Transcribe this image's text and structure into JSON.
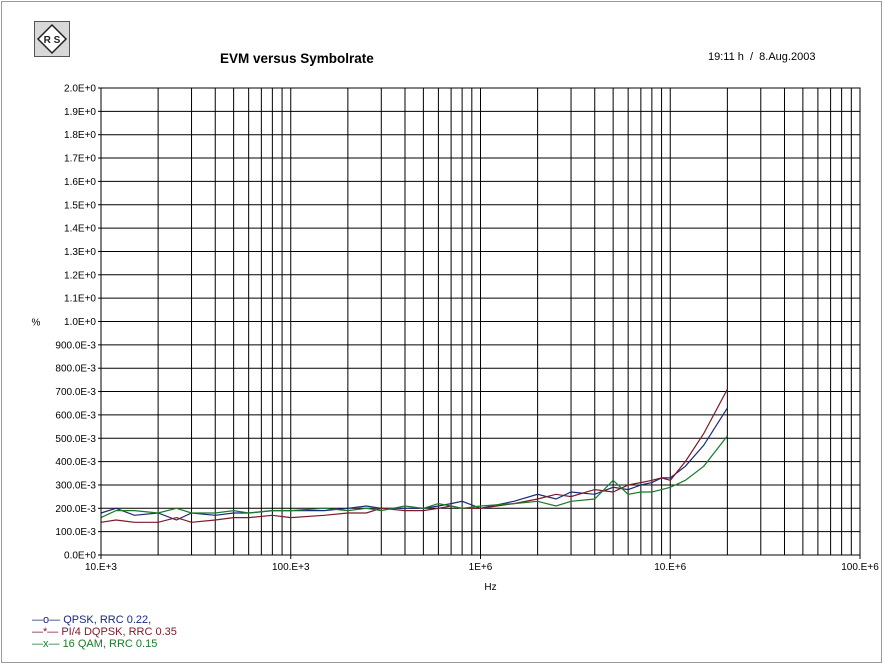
{
  "header": {
    "logo_text": "R S",
    "title": "EVM versus Symbolrate",
    "timestamp": "19:11 h  /  8.Aug.2003"
  },
  "chart_data": {
    "type": "line",
    "title": "EVM versus Symbolrate",
    "xlabel": "Hz",
    "ylabel": "%",
    "xscale": "log",
    "xlim": [
      10000,
      100000000
    ],
    "ylim": [
      0,
      2
    ],
    "grid": true,
    "legend_position": "bottom-left",
    "x_tick_labels": [
      "10.E+3",
      "100.E+3",
      "1E+6",
      "10.E+6",
      "100.E+6"
    ],
    "x_tick_values": [
      10000,
      100000,
      1000000,
      10000000,
      100000000
    ],
    "y_tick_labels": [
      "0.0E+0",
      "100.0E-3",
      "200.0E-3",
      "300.0E-3",
      "400.0E-3",
      "500.0E-3",
      "600.0E-3",
      "700.0E-3",
      "800.0E-3",
      "900.0E-3",
      "1.0E+0",
      "1.1E+0",
      "1.2E+0",
      "1.3E+0",
      "1.4E+0",
      "1.5E+0",
      "1.6E+0",
      "1.7E+0",
      "1.8E+0",
      "1.9E+0",
      "2.0E+0"
    ],
    "y_tick_values": [
      0,
      0.1,
      0.2,
      0.3,
      0.4,
      0.5,
      0.6,
      0.7,
      0.8,
      0.9,
      1.0,
      1.1,
      1.2,
      1.3,
      1.4,
      1.5,
      1.6,
      1.7,
      1.8,
      1.9,
      2.0
    ],
    "series": [
      {
        "name": "QPSK, RRC 0.22,",
        "legend_marker": "—o—",
        "color": "#1a2a7a",
        "x": [
          10000,
          12000,
          15000,
          20000,
          25000,
          30000,
          40000,
          50000,
          60000,
          80000,
          100000,
          150000,
          200000,
          250000,
          300000,
          400000,
          500000,
          600000,
          700000,
          800000,
          1000000,
          1500000,
          2000000,
          2500000,
          3000000,
          4000000,
          5000000,
          6000000,
          7000000,
          8000000,
          9000000,
          10000000,
          12000000,
          15000000,
          20000000
        ],
        "y": [
          0.18,
          0.2,
          0.17,
          0.18,
          0.15,
          0.18,
          0.17,
          0.18,
          0.18,
          0.19,
          0.19,
          0.19,
          0.2,
          0.21,
          0.2,
          0.2,
          0.2,
          0.21,
          0.22,
          0.23,
          0.2,
          0.23,
          0.26,
          0.24,
          0.27,
          0.26,
          0.29,
          0.28,
          0.3,
          0.31,
          0.33,
          0.33,
          0.38,
          0.47,
          0.63
        ]
      },
      {
        "name": "PI/4 DQPSK, RRC 0.35",
        "legend_marker": "—*—",
        "color": "#7a1a2a",
        "x": [
          10000,
          12000,
          15000,
          20000,
          25000,
          30000,
          40000,
          50000,
          60000,
          80000,
          100000,
          150000,
          200000,
          250000,
          300000,
          400000,
          500000,
          600000,
          700000,
          800000,
          1000000,
          1500000,
          2000000,
          2500000,
          3000000,
          4000000,
          5000000,
          6000000,
          7000000,
          8000000,
          9000000,
          10000000,
          12000000,
          15000000,
          20000000
        ],
        "y": [
          0.14,
          0.15,
          0.14,
          0.14,
          0.16,
          0.14,
          0.15,
          0.16,
          0.16,
          0.17,
          0.16,
          0.17,
          0.18,
          0.18,
          0.2,
          0.19,
          0.19,
          0.2,
          0.21,
          0.2,
          0.2,
          0.22,
          0.24,
          0.26,
          0.25,
          0.28,
          0.27,
          0.3,
          0.31,
          0.32,
          0.33,
          0.32,
          0.4,
          0.52,
          0.71
        ]
      },
      {
        "name": "16 QAM, RRC 0.15",
        "legend_marker": "—x—",
        "color": "#1a7a2a",
        "x": [
          10000,
          12000,
          15000,
          20000,
          25000,
          30000,
          40000,
          50000,
          60000,
          80000,
          100000,
          150000,
          200000,
          250000,
          300000,
          400000,
          500000,
          600000,
          700000,
          800000,
          1000000,
          1500000,
          2000000,
          2500000,
          3000000,
          4000000,
          5000000,
          6000000,
          7000000,
          8000000,
          9000000,
          10000000,
          12000000,
          15000000,
          20000000
        ],
        "y": [
          0.16,
          0.19,
          0.19,
          0.18,
          0.2,
          0.18,
          0.18,
          0.19,
          0.18,
          0.19,
          0.19,
          0.2,
          0.19,
          0.2,
          0.19,
          0.21,
          0.2,
          0.22,
          0.21,
          0.2,
          0.21,
          0.22,
          0.23,
          0.21,
          0.23,
          0.24,
          0.32,
          0.26,
          0.27,
          0.27,
          0.28,
          0.29,
          0.32,
          0.38,
          0.51
        ]
      }
    ]
  }
}
